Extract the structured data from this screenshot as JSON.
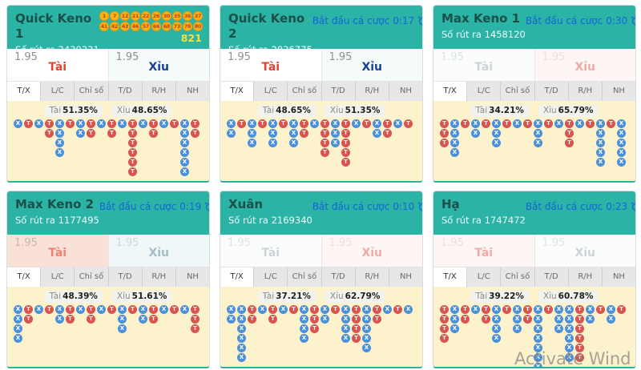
{
  "watermark": "Activate Wind",
  "active_tab": "T/X",
  "tabs": [
    "T/X",
    "L/C",
    "Chỉ số",
    "T/D",
    "R/H",
    "NH"
  ],
  "icons": {
    "countdown_icon": "alarm-clock"
  },
  "colors": {
    "header_teal": "#2bb3a6",
    "title_color": "#1b4f47",
    "draw_color": "#f0fbf9",
    "countdown_blue": "#1664d9",
    "ball_bg": "#fcb514",
    "ball_border": "#e89b0b",
    "ball_text": "#b8432a",
    "sum_yellow": "#fddf3a",
    "road_bg": "#fcf3cc",
    "bead_red": "#d8544f",
    "bead_blue": "#4b90d8",
    "tab_bg": "#e7e7e9",
    "tab_active_bg": "#ffffff",
    "tab_text": "#6b6b6b",
    "tab_active_text": "#333333",
    "pct_chip_bg": "#f2f2ef",
    "pct_label": "#8a8a8a",
    "pct_value": "#1e1e1e"
  },
  "panels": [
    {
      "title": "Quick Keno 1",
      "draw_label": "Số rút ra",
      "draw_number": "2430331",
      "countdown": null,
      "balls": [
        [
          1,
          7,
          12,
          21,
          22,
          26,
          30,
          35,
          36,
          37
        ],
        [
          41,
          42,
          43,
          46,
          57,
          66,
          68,
          73,
          78,
          80
        ]
      ],
      "balls_sum": "821",
      "tai": {
        "odds": "1.95",
        "label": "Tài",
        "bg": "#ffffff",
        "odds_color": "#8f8f8f",
        "label_color": "#e2452f"
      },
      "xiu": {
        "odds": "1.95",
        "label": "Xỉu",
        "bg": "#f5fafb",
        "odds_color": "#8f8f8f",
        "label_color": "#173f9b"
      },
      "pct": {
        "tai_label": "Tài",
        "tai": "51.35%",
        "xiu_label": "Xỉu",
        "xiu": "48.65%"
      },
      "road": [
        [
          "X",
          1
        ],
        [
          "T",
          1
        ],
        [
          "X",
          1
        ],
        [
          "T",
          2
        ],
        [
          "X",
          4
        ],
        [
          "T",
          1
        ],
        [
          "X",
          2
        ],
        [
          "T",
          2
        ],
        [
          "X",
          1
        ],
        [
          "T",
          2
        ],
        [
          "X",
          1
        ],
        [
          "T",
          6
        ],
        [
          "X",
          1
        ],
        [
          "T",
          2
        ],
        [
          "X",
          1
        ],
        [
          "T",
          1
        ],
        [
          "X",
          6
        ],
        [
          "T",
          2
        ]
      ]
    },
    {
      "title": "Quick Keno 2",
      "draw_label": "Số rút ra",
      "draw_number": "2836775",
      "countdown": {
        "label": "Bắt đầu cá cược",
        "time": "0:17"
      },
      "balls": null,
      "balls_sum": null,
      "tai": {
        "odds": "1.95",
        "label": "Tài",
        "bg": "#ffffff",
        "odds_color": "#8f8f8f",
        "label_color": "#e2452f"
      },
      "xiu": {
        "odds": "1.95",
        "label": "Xỉu",
        "bg": "#f5fafb",
        "odds_color": "#8f8f8f",
        "label_color": "#173f9b"
      },
      "pct": {
        "tai_label": "Tài",
        "tai": "48.65%",
        "xiu_label": "Xỉu",
        "xiu": "51.35%"
      },
      "road": [
        [
          "X",
          2
        ],
        [
          "T",
          1
        ],
        [
          "X",
          3
        ],
        [
          "T",
          1
        ],
        [
          "X",
          3
        ],
        [
          "T",
          1
        ],
        [
          "X",
          3
        ],
        [
          "T",
          2
        ],
        [
          "X",
          1
        ],
        [
          "T",
          4
        ],
        [
          "X",
          3
        ],
        [
          "T",
          5
        ],
        [
          "X",
          1
        ],
        [
          "T",
          1
        ],
        [
          "X",
          2
        ],
        [
          "T",
          2
        ],
        [
          "X",
          1
        ],
        [
          "T",
          1
        ]
      ]
    },
    {
      "title": "Max Keno 1",
      "draw_label": "Số rút ra",
      "draw_number": "1458120",
      "countdown": {
        "label": "Bắt đầu cá cược",
        "time": "0:30"
      },
      "balls": null,
      "balls_sum": null,
      "tai": {
        "odds": "1.95",
        "label": "Tài",
        "bg": "#fbfcfc",
        "odds_color": "#e0e4e6",
        "label_color": "#cdd4d8"
      },
      "xiu": {
        "odds": "1.95",
        "label": "Xỉu",
        "bg": "#fdf6f5",
        "odds_color": "#ecdfdd",
        "label_color": "#f0aba5"
      },
      "pct": {
        "tai_label": "Tài",
        "tai": "34.21%",
        "xiu_label": "Xỉu",
        "xiu": "65.79%"
      },
      "road": [
        [
          "T",
          3
        ],
        [
          "X",
          4
        ],
        [
          "T",
          1
        ],
        [
          "X",
          2
        ],
        [
          "T",
          1
        ],
        [
          "X",
          3
        ],
        [
          "T",
          1
        ],
        [
          "X",
          1
        ],
        [
          "T",
          1
        ],
        [
          "X",
          3
        ],
        [
          "T",
          1
        ],
        [
          "X",
          1
        ],
        [
          "T",
          3
        ],
        [
          "X",
          1
        ],
        [
          "T",
          1
        ],
        [
          "X",
          5
        ],
        [
          "T",
          1
        ],
        [
          "X",
          5
        ]
      ]
    },
    {
      "title": "Max Keno 2",
      "draw_label": "Số rút ra",
      "draw_number": "1177495",
      "countdown": {
        "label": "Bắt đầu cá cược",
        "time": "0:19"
      },
      "balls": null,
      "balls_sum": null,
      "tai": {
        "odds": "1.95",
        "label": "Tài",
        "bg": "#f9e1d8",
        "odds_color": "#c9b5ad",
        "label_color": "#ee8176"
      },
      "xiu": {
        "odds": "1.95",
        "label": "Xỉu",
        "bg": "#eff7f9",
        "odds_color": "#ccd9dd",
        "label_color": "#a6bdc5"
      },
      "pct": {
        "tai_label": "Tài",
        "tai": "48.39%",
        "xiu_label": "Xỉu",
        "xiu": "51.61%"
      },
      "road": [
        [
          "X",
          4
        ],
        [
          "T",
          2
        ],
        [
          "X",
          1
        ],
        [
          "T",
          1
        ],
        [
          "X",
          2
        ],
        [
          "T",
          2
        ],
        [
          "X",
          1
        ],
        [
          "T",
          2
        ],
        [
          "X",
          1
        ],
        [
          "T",
          1
        ],
        [
          "X",
          3
        ],
        [
          "T",
          1
        ],
        [
          "X",
          2
        ],
        [
          "T",
          2
        ],
        [
          "X",
          1
        ],
        [
          "T",
          1
        ],
        [
          "X",
          1
        ],
        [
          "T",
          3
        ]
      ]
    },
    {
      "title": "Xuân",
      "draw_label": "Số rút ra",
      "draw_number": "2169340",
      "countdown": {
        "label": "Bắt đầu cá cược",
        "time": "0:10"
      },
      "balls": null,
      "balls_sum": null,
      "tai": {
        "odds": "1.95",
        "label": "Tài",
        "bg": "#fbfcfc",
        "odds_color": "#e0e4e6",
        "label_color": "#cdd4d8"
      },
      "xiu": {
        "odds": "1.95",
        "label": "Xỉu",
        "bg": "#fdf6f5",
        "odds_color": "#ecdfdd",
        "label_color": "#f0aba5"
      },
      "pct": {
        "tai_label": "Tài",
        "tai": "37.21%",
        "xiu_label": "Xỉu",
        "xiu": "62.79%"
      },
      "road": [
        [
          "X",
          2
        ],
        [
          "X",
          6
        ],
        [
          "T",
          2
        ],
        [
          "X",
          1
        ],
        [
          "T",
          2
        ],
        [
          "X",
          1
        ],
        [
          "T",
          1
        ],
        [
          "X",
          4
        ],
        [
          "T",
          3
        ],
        [
          "X",
          2
        ],
        [
          "T",
          1
        ],
        [
          "X",
          4
        ],
        [
          "T",
          4
        ],
        [
          "X",
          5
        ],
        [
          "T",
          2
        ],
        [
          "X",
          1
        ],
        [
          "T",
          1
        ],
        [
          "X",
          1
        ]
      ]
    },
    {
      "title": "Hạ",
      "draw_label": "Số rút ra",
      "draw_number": "1747472",
      "countdown": {
        "label": "Bắt đầu cá cược",
        "time": "0:23"
      },
      "balls": null,
      "balls_sum": null,
      "tai": {
        "odds": "1.95",
        "label": "Tài",
        "bg": "#fdf6f5",
        "odds_color": "#ecdfdd",
        "label_color": "#f0aba5"
      },
      "xiu": {
        "odds": "1.95",
        "label": "Xỉu",
        "bg": "#fbfcfc",
        "odds_color": "#e0e4e6",
        "label_color": "#cdd4d8"
      },
      "pct": {
        "tai_label": "Tài",
        "tai": "39.22%",
        "xiu_label": "Xỉu",
        "xiu": "60.78%"
      },
      "road": [
        [
          "T",
          4
        ],
        [
          "X",
          3
        ],
        [
          "T",
          2
        ],
        [
          "X",
          1
        ],
        [
          "T",
          2
        ],
        [
          "X",
          4
        ],
        [
          "T",
          1
        ],
        [
          "X",
          3
        ],
        [
          "T",
          2
        ],
        [
          "X",
          7
        ],
        [
          "T",
          1
        ],
        [
          "X",
          3
        ],
        [
          "X",
          6
        ],
        [
          "T",
          6
        ],
        [
          "X",
          2
        ],
        [
          "T",
          1
        ],
        [
          "X",
          2
        ],
        [
          "T",
          1
        ]
      ]
    }
  ]
}
